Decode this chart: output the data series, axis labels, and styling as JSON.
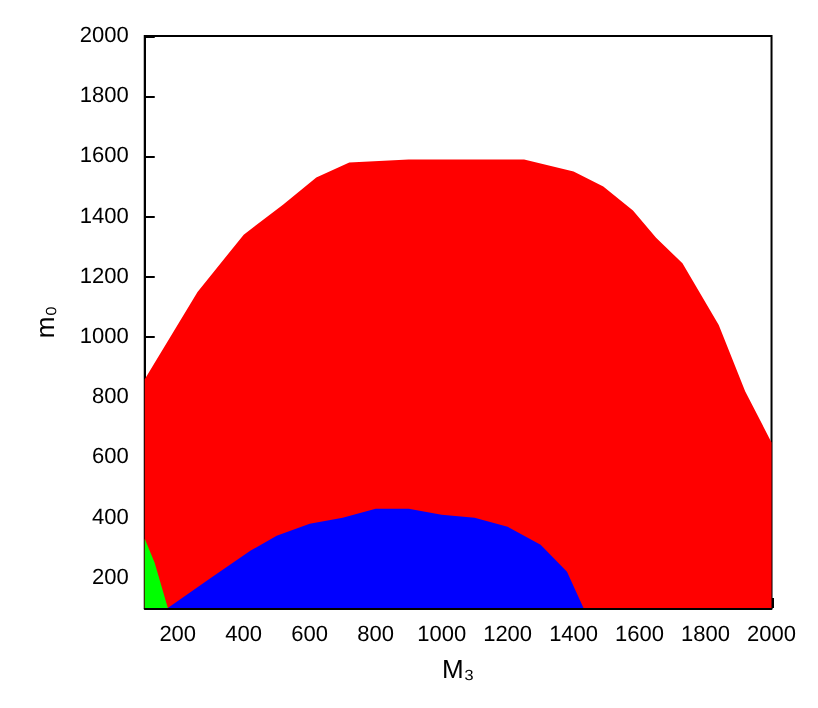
{
  "chart_data": {
    "type": "area",
    "xlabel": "M₃",
    "ylabel": "m₀",
    "xlim": [
      100,
      2000
    ],
    "ylim": [
      100,
      2000
    ],
    "xticks": [
      200,
      400,
      600,
      800,
      1000,
      1200,
      1400,
      1600,
      1800,
      2000
    ],
    "yticks": [
      200,
      400,
      600,
      800,
      1000,
      1200,
      1400,
      1600,
      1800,
      2000
    ],
    "grid": false,
    "series": [
      {
        "color": "#ff0000",
        "x": [
          100,
          260,
          400,
          520,
          620,
          720,
          900,
          1250,
          1400,
          1490,
          1580,
          1650,
          1730,
          1840,
          1920,
          2000
        ],
        "values": [
          860,
          1150,
          1340,
          1440,
          1530,
          1580,
          1590,
          1590,
          1550,
          1500,
          1420,
          1330,
          1245,
          1040,
          820,
          650
        ]
      },
      {
        "color": "#0000ff",
        "x": [
          170,
          300,
          420,
          500,
          600,
          700,
          800,
          900,
          1000,
          1100,
          1200,
          1300,
          1380,
          1430
        ],
        "values": [
          100,
          200,
          290,
          340,
          380,
          400,
          430,
          430,
          410,
          400,
          370,
          310,
          220,
          100
        ]
      },
      {
        "color": "#00ff00",
        "x": [
          100,
          130,
          170
        ],
        "values": [
          330,
          250,
          100
        ]
      }
    ]
  }
}
